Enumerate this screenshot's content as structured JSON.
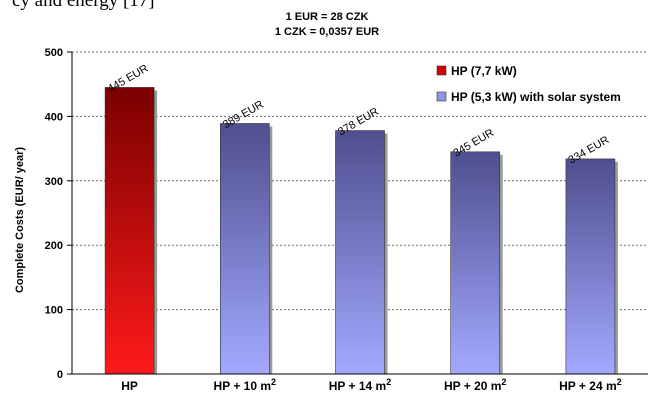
{
  "caption_fragment": "cy and energy [17]",
  "rates": [
    "1 EUR = 28 CZK",
    "1 CZK = 0,0357 EUR"
  ],
  "chart_data": {
    "type": "bar",
    "categories": [
      "HP",
      "HP + 10 m",
      "HP + 14 m",
      "HP + 20 m",
      "HP + 24 m"
    ],
    "category_superscripts": [
      "",
      "2",
      "2",
      "2",
      "2"
    ],
    "values": [
      445,
      389,
      378,
      345,
      334
    ],
    "value_labels": [
      "445 EUR",
      "389 EUR",
      "378 EUR",
      "345 EUR",
      "334 EUR"
    ],
    "series_of_bar": [
      0,
      1,
      1,
      1,
      1
    ],
    "series": [
      {
        "name": "HP (7,7 kW)",
        "color": "#d40000"
      },
      {
        "name": "HP (5,3 kW) with solar system",
        "color": "#8f96e6"
      }
    ],
    "ylabel": "Complete Costs   (EUR/ year)",
    "ylim": [
      0,
      500
    ],
    "yticks": [
      0,
      100,
      200,
      300,
      400,
      500
    ],
    "grid": true,
    "legend_position": "top-right"
  }
}
